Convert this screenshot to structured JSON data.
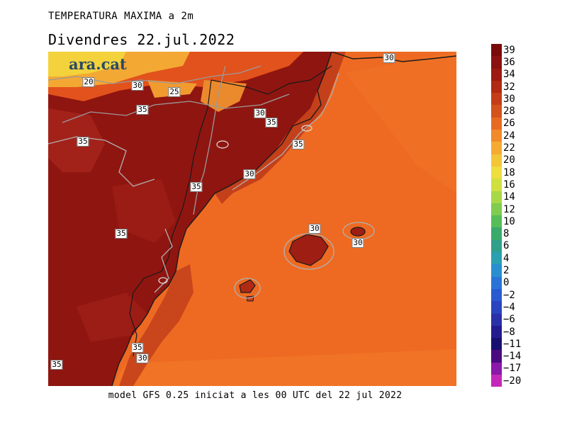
{
  "header": {
    "title": "TEMPERATURA MAXIMA a 2m",
    "subtitle": "Divendres  22.jul.2022"
  },
  "brand": {
    "logo_text": "ara.cat"
  },
  "footer": {
    "caption": "model GFS 0.25 iniciat a les 00 UTC del 22 jul 2022"
  },
  "map": {
    "contour_labels": [
      "20",
      "30",
      "25",
      "35",
      "30",
      "35",
      "35",
      "35",
      "30",
      "35",
      "35",
      "30",
      "30",
      "35",
      "30",
      "35",
      "30"
    ]
  },
  "colorbar": {
    "labels": [
      "39",
      "36",
      "34",
      "32",
      "30",
      "28",
      "26",
      "24",
      "22",
      "20",
      "18",
      "16",
      "14",
      "12",
      "10",
      "8",
      "6",
      "4",
      "2",
      "0",
      "−2",
      "−4",
      "−6",
      "−8",
      "−11",
      "−14",
      "−17",
      "−20"
    ],
    "colors": [
      "#7a0a0a",
      "#8b1010",
      "#9c1a12",
      "#b02a14",
      "#c43c18",
      "#d4521c",
      "#e86a22",
      "#f08a2a",
      "#f5ab32",
      "#f3c63a",
      "#eede3e",
      "#cfe040",
      "#a8d848",
      "#7fcc4e",
      "#55be58",
      "#3aaa6a",
      "#2fa08a",
      "#2aa0b0",
      "#2a8ed0",
      "#2a74d8",
      "#2a5ad0",
      "#2a44c0",
      "#2a30a8",
      "#221c90",
      "#181070",
      "#4a0a80",
      "#8a18a8",
      "#c428b8"
    ]
  }
}
